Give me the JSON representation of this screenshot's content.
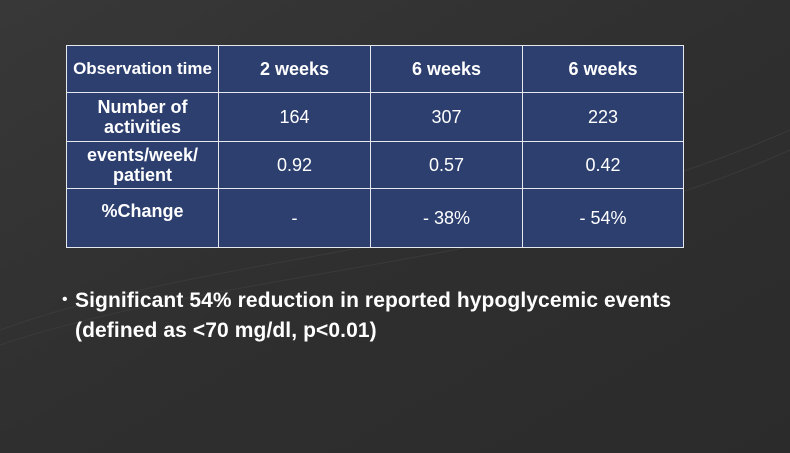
{
  "table": {
    "rows": [
      [
        "Observation time",
        "2 weeks",
        "6 weeks",
        "6 weeks"
      ],
      [
        "Number of activities",
        "164",
        "307",
        "223"
      ],
      [
        "events/week/ patient",
        "0.92",
        "0.57",
        "0.42"
      ],
      [
        "%Change",
        "-",
        "- 38%",
        "- 54%"
      ]
    ]
  },
  "bullet": {
    "text": "Significant 54% reduction in reported hypoglycemic events (defined as <70 mg/dl, p<0.01)"
  },
  "colors": {
    "background": "#303030",
    "table_cell": "#2c3f6f",
    "table_border": "#e6e8ee",
    "text": "#ffffff"
  }
}
